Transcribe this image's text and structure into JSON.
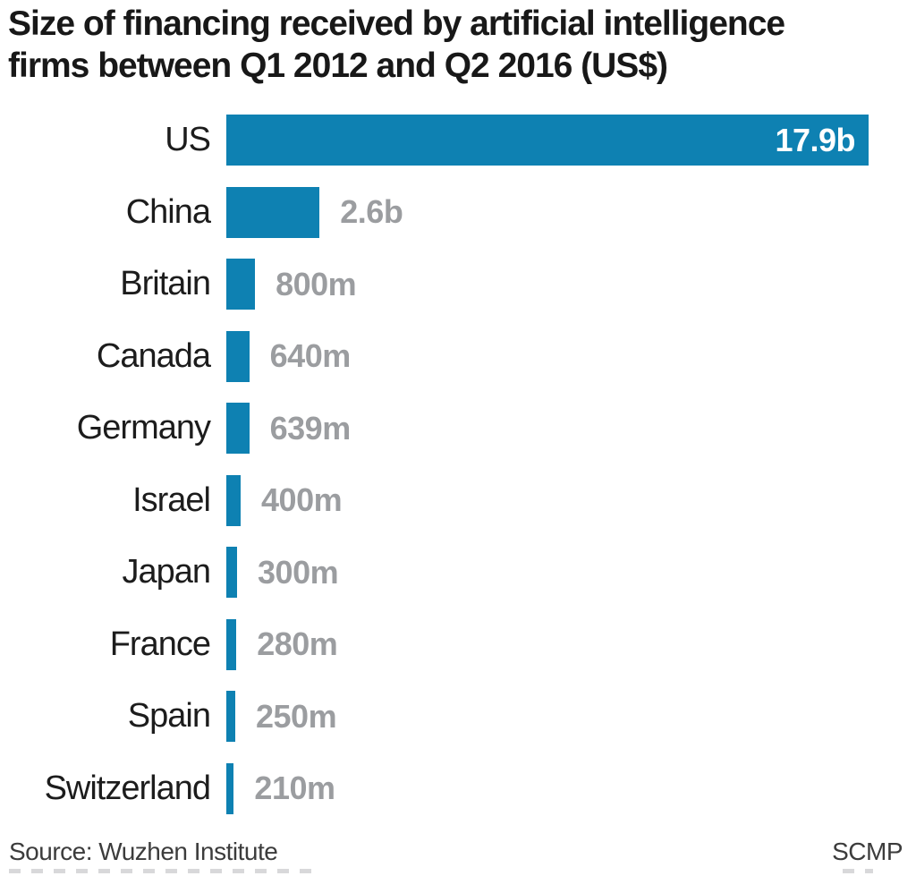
{
  "title": {
    "line1": "Size of financing received by artificial intelligence",
    "line2": "firms between Q1 2012 and Q2 2016 (US$)"
  },
  "chart_data": {
    "type": "bar",
    "orientation": "horizontal",
    "title": "Size of financing received by artificial intelligence firms between Q1 2012 and Q2 2016 (US$)",
    "unit": "US$",
    "categories": [
      "US",
      "China",
      "Britain",
      "Canada",
      "Germany",
      "Israel",
      "Japan",
      "France",
      "Spain",
      "Switzerland"
    ],
    "values_usd_millions": [
      17900,
      2600,
      800,
      640,
      639,
      400,
      300,
      280,
      250,
      210
    ],
    "value_labels": [
      "17.9b",
      "2.6b",
      "800m",
      "640m",
      "639m",
      "400m",
      "300m",
      "280m",
      "250m",
      "210m"
    ],
    "xlim": [
      0,
      17900
    ],
    "grid": false,
    "legend": false,
    "bar_color": "#0e81b2",
    "outside_value_color": "#9b9da0",
    "inside_value_color": "#ffffff"
  },
  "footer": {
    "source": "Source: Wuzhen Institute",
    "credit": "SCMP"
  }
}
